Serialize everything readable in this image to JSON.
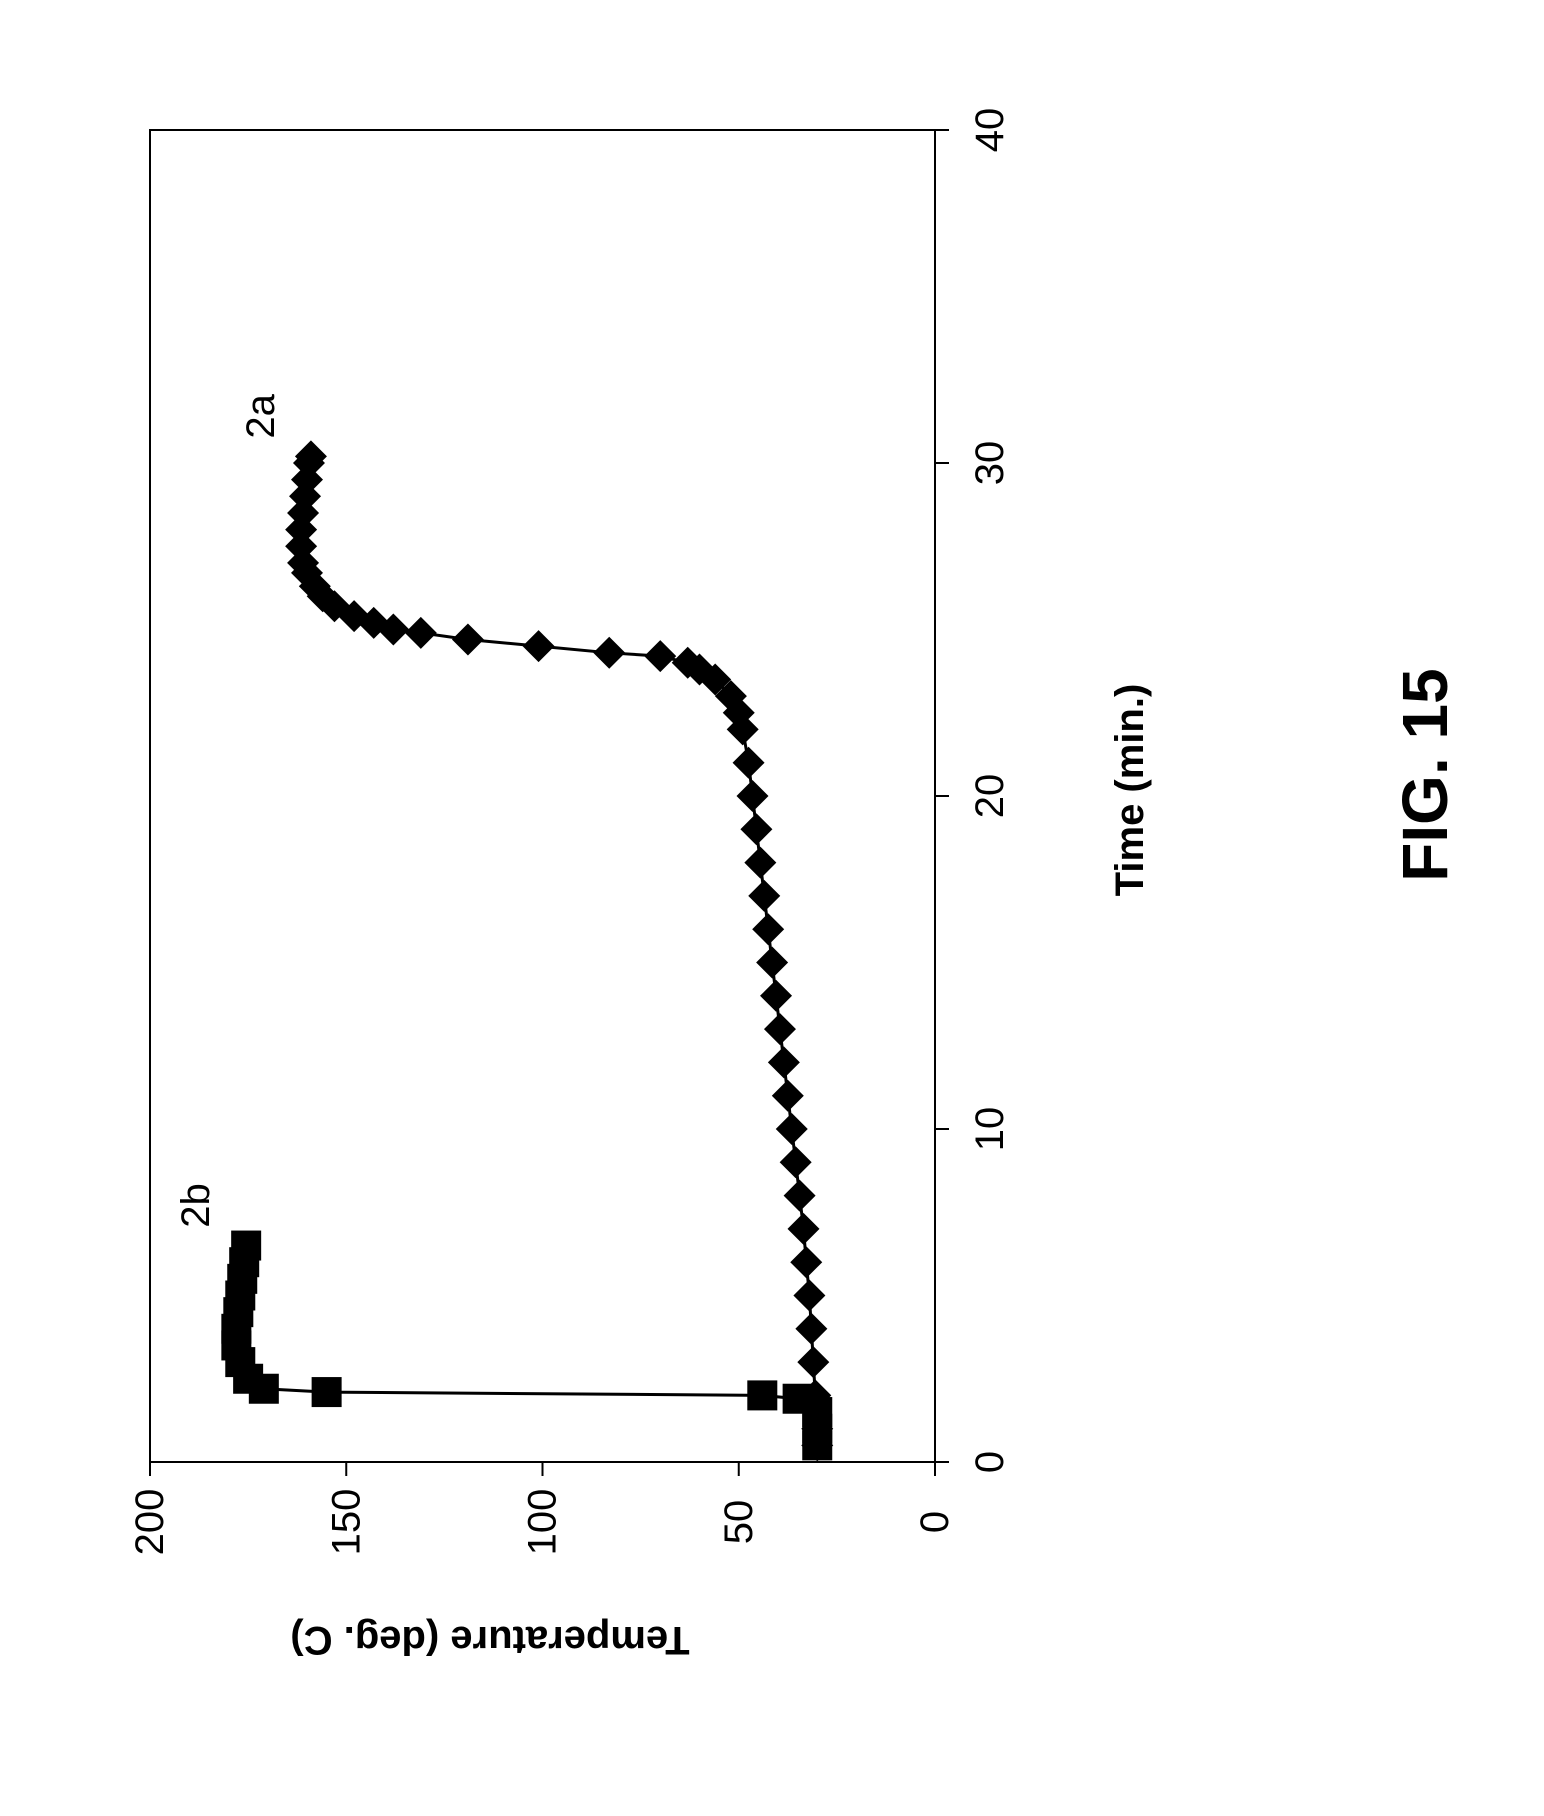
{
  "figure_label": "FIG. 15",
  "chart_data": {
    "type": "scatter",
    "title": "",
    "xlabel": "Time (min.)",
    "ylabel": "Temperature (deg. C)",
    "xlim": [
      0,
      40
    ],
    "ylim": [
      0,
      200
    ],
    "x_ticks": [
      "0",
      "10",
      "20",
      "30",
      "40"
    ],
    "y_ticks": [
      "0",
      "50",
      "100",
      "150",
      "200"
    ],
    "orientation": "rotated 90 degrees counter-clockwise",
    "grid": false,
    "legend": "none",
    "series": [
      {
        "name": "2a",
        "marker": "diamond",
        "color": "#000000",
        "points": [
          [
            0.5,
            30
          ],
          [
            1,
            30
          ],
          [
            2,
            30.5
          ],
          [
            3,
            31
          ],
          [
            4,
            31.5
          ],
          [
            5,
            32
          ],
          [
            6,
            32.8
          ],
          [
            7,
            33.5
          ],
          [
            8,
            34.5
          ],
          [
            9,
            35.5
          ],
          [
            10,
            36.5
          ],
          [
            11,
            37.5
          ],
          [
            12,
            38.5
          ],
          [
            13,
            39.5
          ],
          [
            14,
            40.5
          ],
          [
            15,
            41.5
          ],
          [
            16,
            42.5
          ],
          [
            17,
            43.5
          ],
          [
            18,
            44.5
          ],
          [
            19,
            45.5
          ],
          [
            20,
            46.5
          ],
          [
            21,
            47.5
          ],
          [
            22,
            49
          ],
          [
            22.5,
            50
          ],
          [
            23,
            52
          ],
          [
            23.5,
            56
          ],
          [
            23.8,
            60
          ],
          [
            24,
            63
          ],
          [
            24.2,
            70
          ],
          [
            24.3,
            83
          ],
          [
            24.5,
            101
          ],
          [
            24.7,
            119
          ],
          [
            24.9,
            131
          ],
          [
            25.0,
            138
          ],
          [
            25.2,
            143
          ],
          [
            25.4,
            148
          ],
          [
            25.7,
            153
          ],
          [
            26,
            156
          ],
          [
            26.3,
            158
          ],
          [
            26.7,
            160
          ],
          [
            27,
            161
          ],
          [
            27.5,
            161.5
          ],
          [
            28,
            161.5
          ],
          [
            28.5,
            161
          ],
          [
            29,
            160.5
          ],
          [
            29.5,
            160
          ],
          [
            30,
            159.5
          ],
          [
            30.2,
            159
          ]
        ]
      },
      {
        "name": "2b",
        "marker": "square",
        "color": "#000000",
        "points": [
          [
            0.5,
            30
          ],
          [
            1,
            30
          ],
          [
            1.5,
            30
          ],
          [
            1.9,
            35
          ],
          [
            2.0,
            44
          ],
          [
            2.1,
            155
          ],
          [
            2.2,
            171
          ],
          [
            2.5,
            175
          ],
          [
            3,
            177
          ],
          [
            3.5,
            178
          ],
          [
            4,
            178
          ],
          [
            4.5,
            177.5
          ],
          [
            5,
            177
          ],
          [
            5.5,
            176.5
          ],
          [
            6,
            176
          ],
          [
            6.5,
            175.5
          ]
        ]
      }
    ]
  }
}
